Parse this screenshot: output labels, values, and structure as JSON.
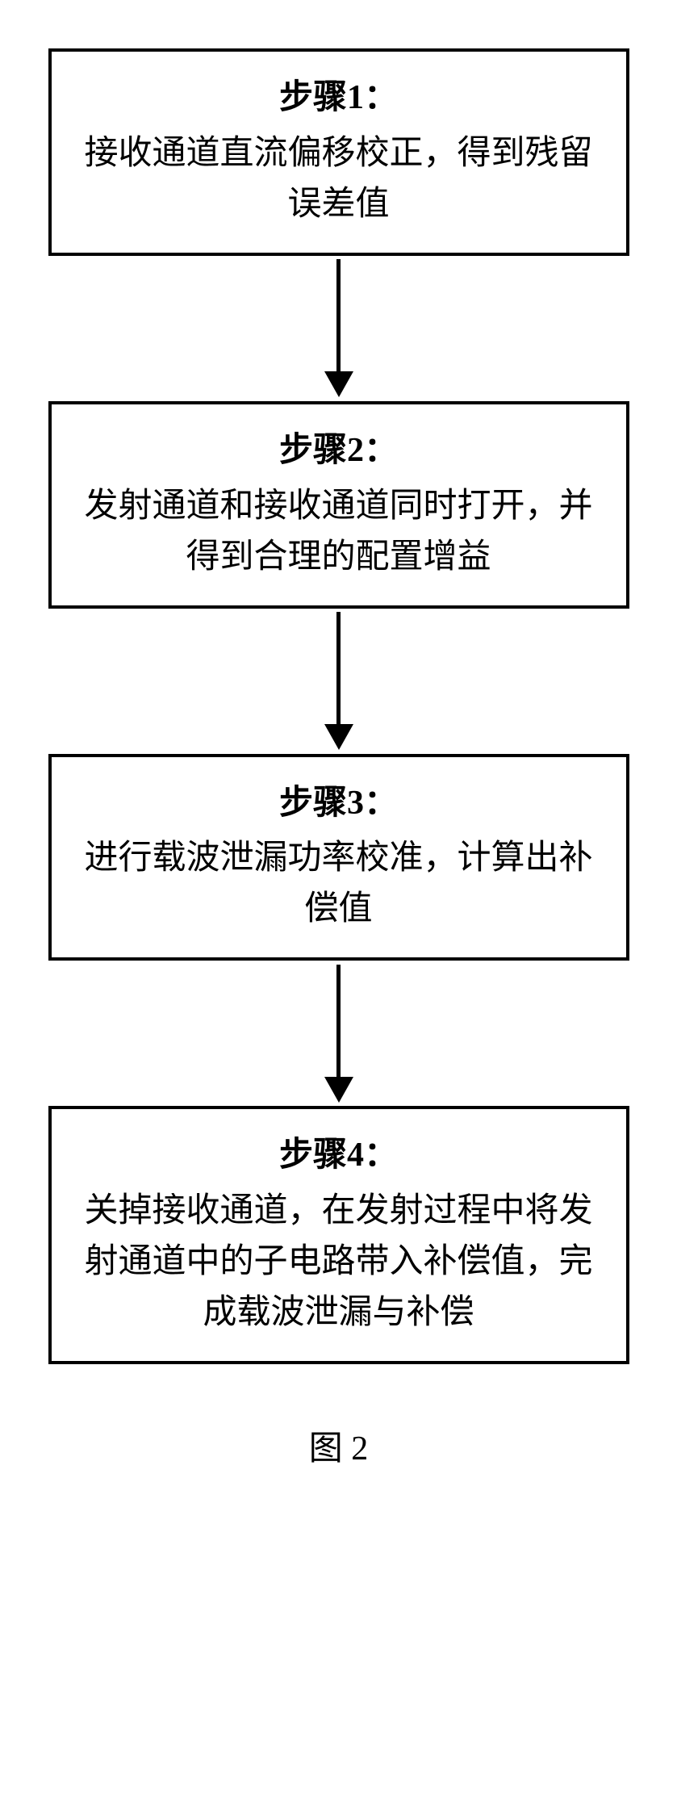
{
  "flowchart": {
    "type": "flowchart",
    "direction": "vertical",
    "box_border_color": "#000000",
    "box_border_width": 4,
    "box_background": "#ffffff",
    "text_color": "#000000",
    "arrow_color": "#000000",
    "arrow_line_width": 5,
    "arrow_head_size": 32,
    "title_fontsize": 42,
    "desc_fontsize": 42,
    "font_family": "SimSun",
    "steps": [
      {
        "title": "步骤1：",
        "desc": "接收通道直流偏移校正，得到残留误差值"
      },
      {
        "title": "步骤2：",
        "desc": "发射通道和接收通道同时打开，并得到合理的配置增益"
      },
      {
        "title": "步骤3：",
        "desc": "进行载波泄漏功率校准，计算出补偿值"
      },
      {
        "title": "步骤4：",
        "desc": "关掉接收通道，在发射过程中将发射通道中的子电路带入补偿值，完成载波泄漏与补偿"
      }
    ]
  },
  "figure_label": "图 2"
}
